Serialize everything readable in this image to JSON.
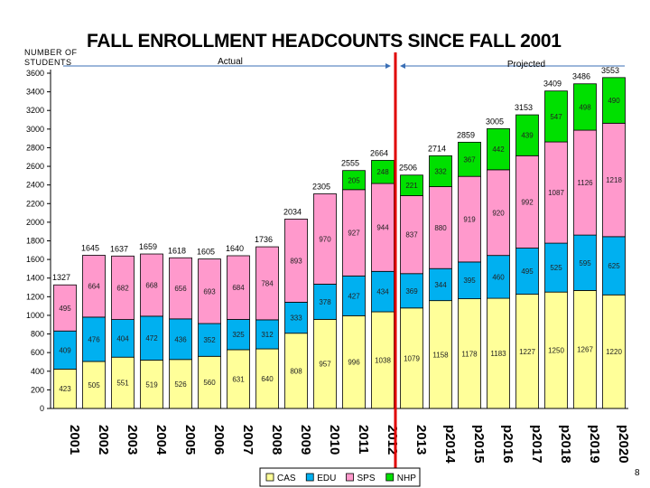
{
  "page_number": "8",
  "chart_data": {
    "type": "bar",
    "stacked": true,
    "title": "FALL ENROLLMENT HEADCOUNTS SINCE FALL 2001",
    "ylabel": "NUMBER OF STUDENTS",
    "ylim": [
      0,
      3600
    ],
    "yticks": [
      "0",
      "200",
      "400",
      "600",
      "800",
      "1000",
      "1200",
      "1400",
      "1600",
      "1800",
      "2000",
      "2200",
      "2400",
      "2600",
      "2800",
      "3000",
      "3200",
      "3400",
      "3600"
    ],
    "categories": [
      "2001",
      "2002",
      "2003",
      "2004",
      "2005",
      "2006",
      "2007",
      "2008",
      "2009",
      "2010",
      "2011",
      "2012",
      "2013",
      "p2014",
      "p2015",
      "p2016",
      "p2017",
      "p2018",
      "p2019",
      "p2020"
    ],
    "series": [
      {
        "name": "CAS",
        "color": "#FFFF99",
        "values": [
          423,
          505,
          551,
          519,
          526,
          560,
          631,
          640,
          808,
          957,
          996,
          1038,
          1079,
          1158,
          1178,
          1183,
          1227,
          1250,
          1267,
          1220
        ]
      },
      {
        "name": "EDU",
        "color": "#00B0F0",
        "values": [
          409,
          476,
          404,
          472,
          436,
          352,
          325,
          312,
          333,
          378,
          427,
          434,
          369,
          344,
          395,
          460,
          495,
          525,
          595,
          625
        ]
      },
      {
        "name": "SPS",
        "color": "#FF99CC",
        "values": [
          495,
          664,
          682,
          668,
          656,
          693,
          684,
          784,
          893,
          970,
          927,
          944,
          837,
          880,
          919,
          920,
          992,
          1087,
          1126,
          1218
        ]
      },
      {
        "name": "NHP",
        "color": "#00E000",
        "values": [
          0,
          0,
          0,
          0,
          0,
          0,
          0,
          0,
          0,
          0,
          205,
          248,
          221,
          332,
          367,
          442,
          439,
          547,
          498,
          490
        ]
      }
    ],
    "totals": [
      "1327",
      "1645",
      "1637",
      "1659",
      "1618",
      "1605",
      "1640",
      "1736",
      "2034",
      "2305",
      "2555",
      "2664",
      "2506",
      "2714",
      "2859",
      "3005",
      "3153",
      "3409",
      "3486",
      "3553"
    ],
    "legend_position": "bottom",
    "annotations": {
      "actual": "Actual",
      "projected": "Projected"
    },
    "divider_after_category": "2012"
  }
}
